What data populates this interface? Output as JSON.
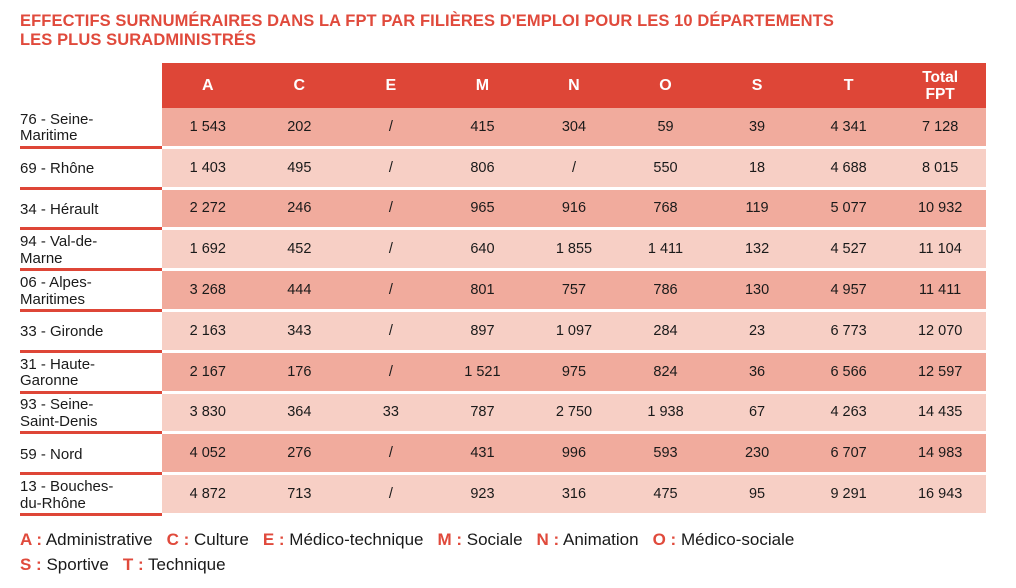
{
  "title_lines": [
    "EFFECTIFS SURNUMÉRAIRES DANS LA FPT PAR FILIÈRES D'EMPLOI POUR LES 10 DÉPARTEMENTS",
    "LES PLUS SURADMINISTRÉS"
  ],
  "columns": [
    "A",
    "C",
    "E",
    "M",
    "N",
    "O",
    "S",
    "T"
  ],
  "total_header": [
    "Total",
    "FPT"
  ],
  "rows": [
    {
      "label": [
        "76 - Seine-",
        "Maritime"
      ],
      "values": [
        "1 543",
        "202",
        "/",
        "415",
        "304",
        "59",
        "39",
        "4 341",
        "7 128"
      ]
    },
    {
      "label": [
        "69 - Rhône"
      ],
      "values": [
        "1 403",
        "495",
        "/",
        "806",
        "/",
        "550",
        "18",
        "4 688",
        "8 015"
      ]
    },
    {
      "label": [
        "34 - Hérault"
      ],
      "values": [
        "2 272",
        "246",
        "/",
        "965",
        "916",
        "768",
        "119",
        "5 077",
        "10 932"
      ]
    },
    {
      "label": [
        "94 - Val-de-",
        "Marne"
      ],
      "values": [
        "1 692",
        "452",
        "/",
        "640",
        "1 855",
        "1 411",
        "132",
        "4 527",
        "11 104"
      ]
    },
    {
      "label": [
        "06 - Alpes-",
        "Maritimes"
      ],
      "values": [
        "3 268",
        "444",
        "/",
        "801",
        "757",
        "786",
        "130",
        "4 957",
        "11 411"
      ]
    },
    {
      "label": [
        "33 - Gironde"
      ],
      "values": [
        "2 163",
        "343",
        "/",
        "897",
        "1 097",
        "284",
        "23",
        "6 773",
        "12 070"
      ]
    },
    {
      "label": [
        "31 - Haute-",
        "Garonne"
      ],
      "values": [
        "2 167",
        "176",
        "/",
        "1 521",
        "975",
        "824",
        "36",
        "6 566",
        "12 597"
      ]
    },
    {
      "label": [
        "93 - Seine-",
        "Saint-Denis"
      ],
      "values": [
        "3 830",
        "364",
        "33",
        "787",
        "2 750",
        "1 938",
        "67",
        "4 263",
        "14 435"
      ]
    },
    {
      "label": [
        "59 - Nord"
      ],
      "values": [
        "4 052",
        "276",
        "/",
        "431",
        "996",
        "593",
        "230",
        "6 707",
        "14 983"
      ]
    },
    {
      "label": [
        "13 - Bouches-",
        "du-Rhône"
      ],
      "values": [
        "4 872",
        "713",
        "/",
        "923",
        "316",
        "475",
        "95",
        "9 291",
        "16 943"
      ]
    }
  ],
  "legend": [
    [
      {
        "code": "A :",
        "text": "Administrative"
      },
      {
        "code": "C :",
        "text": "Culture"
      },
      {
        "code": "E :",
        "text": "Médico-technique"
      },
      {
        "code": "M :",
        "text": "Sociale"
      },
      {
        "code": "N :",
        "text": "Animation"
      },
      {
        "code": "O :",
        "text": "Médico-sociale"
      }
    ],
    [
      {
        "code": "S :",
        "text": "Sportive"
      },
      {
        "code": "T :",
        "text": "Technique"
      }
    ]
  ],
  "colors": {
    "accent": "#de4637",
    "row_dark": "#f1ab9d",
    "row_light": "#f7cfc5"
  }
}
